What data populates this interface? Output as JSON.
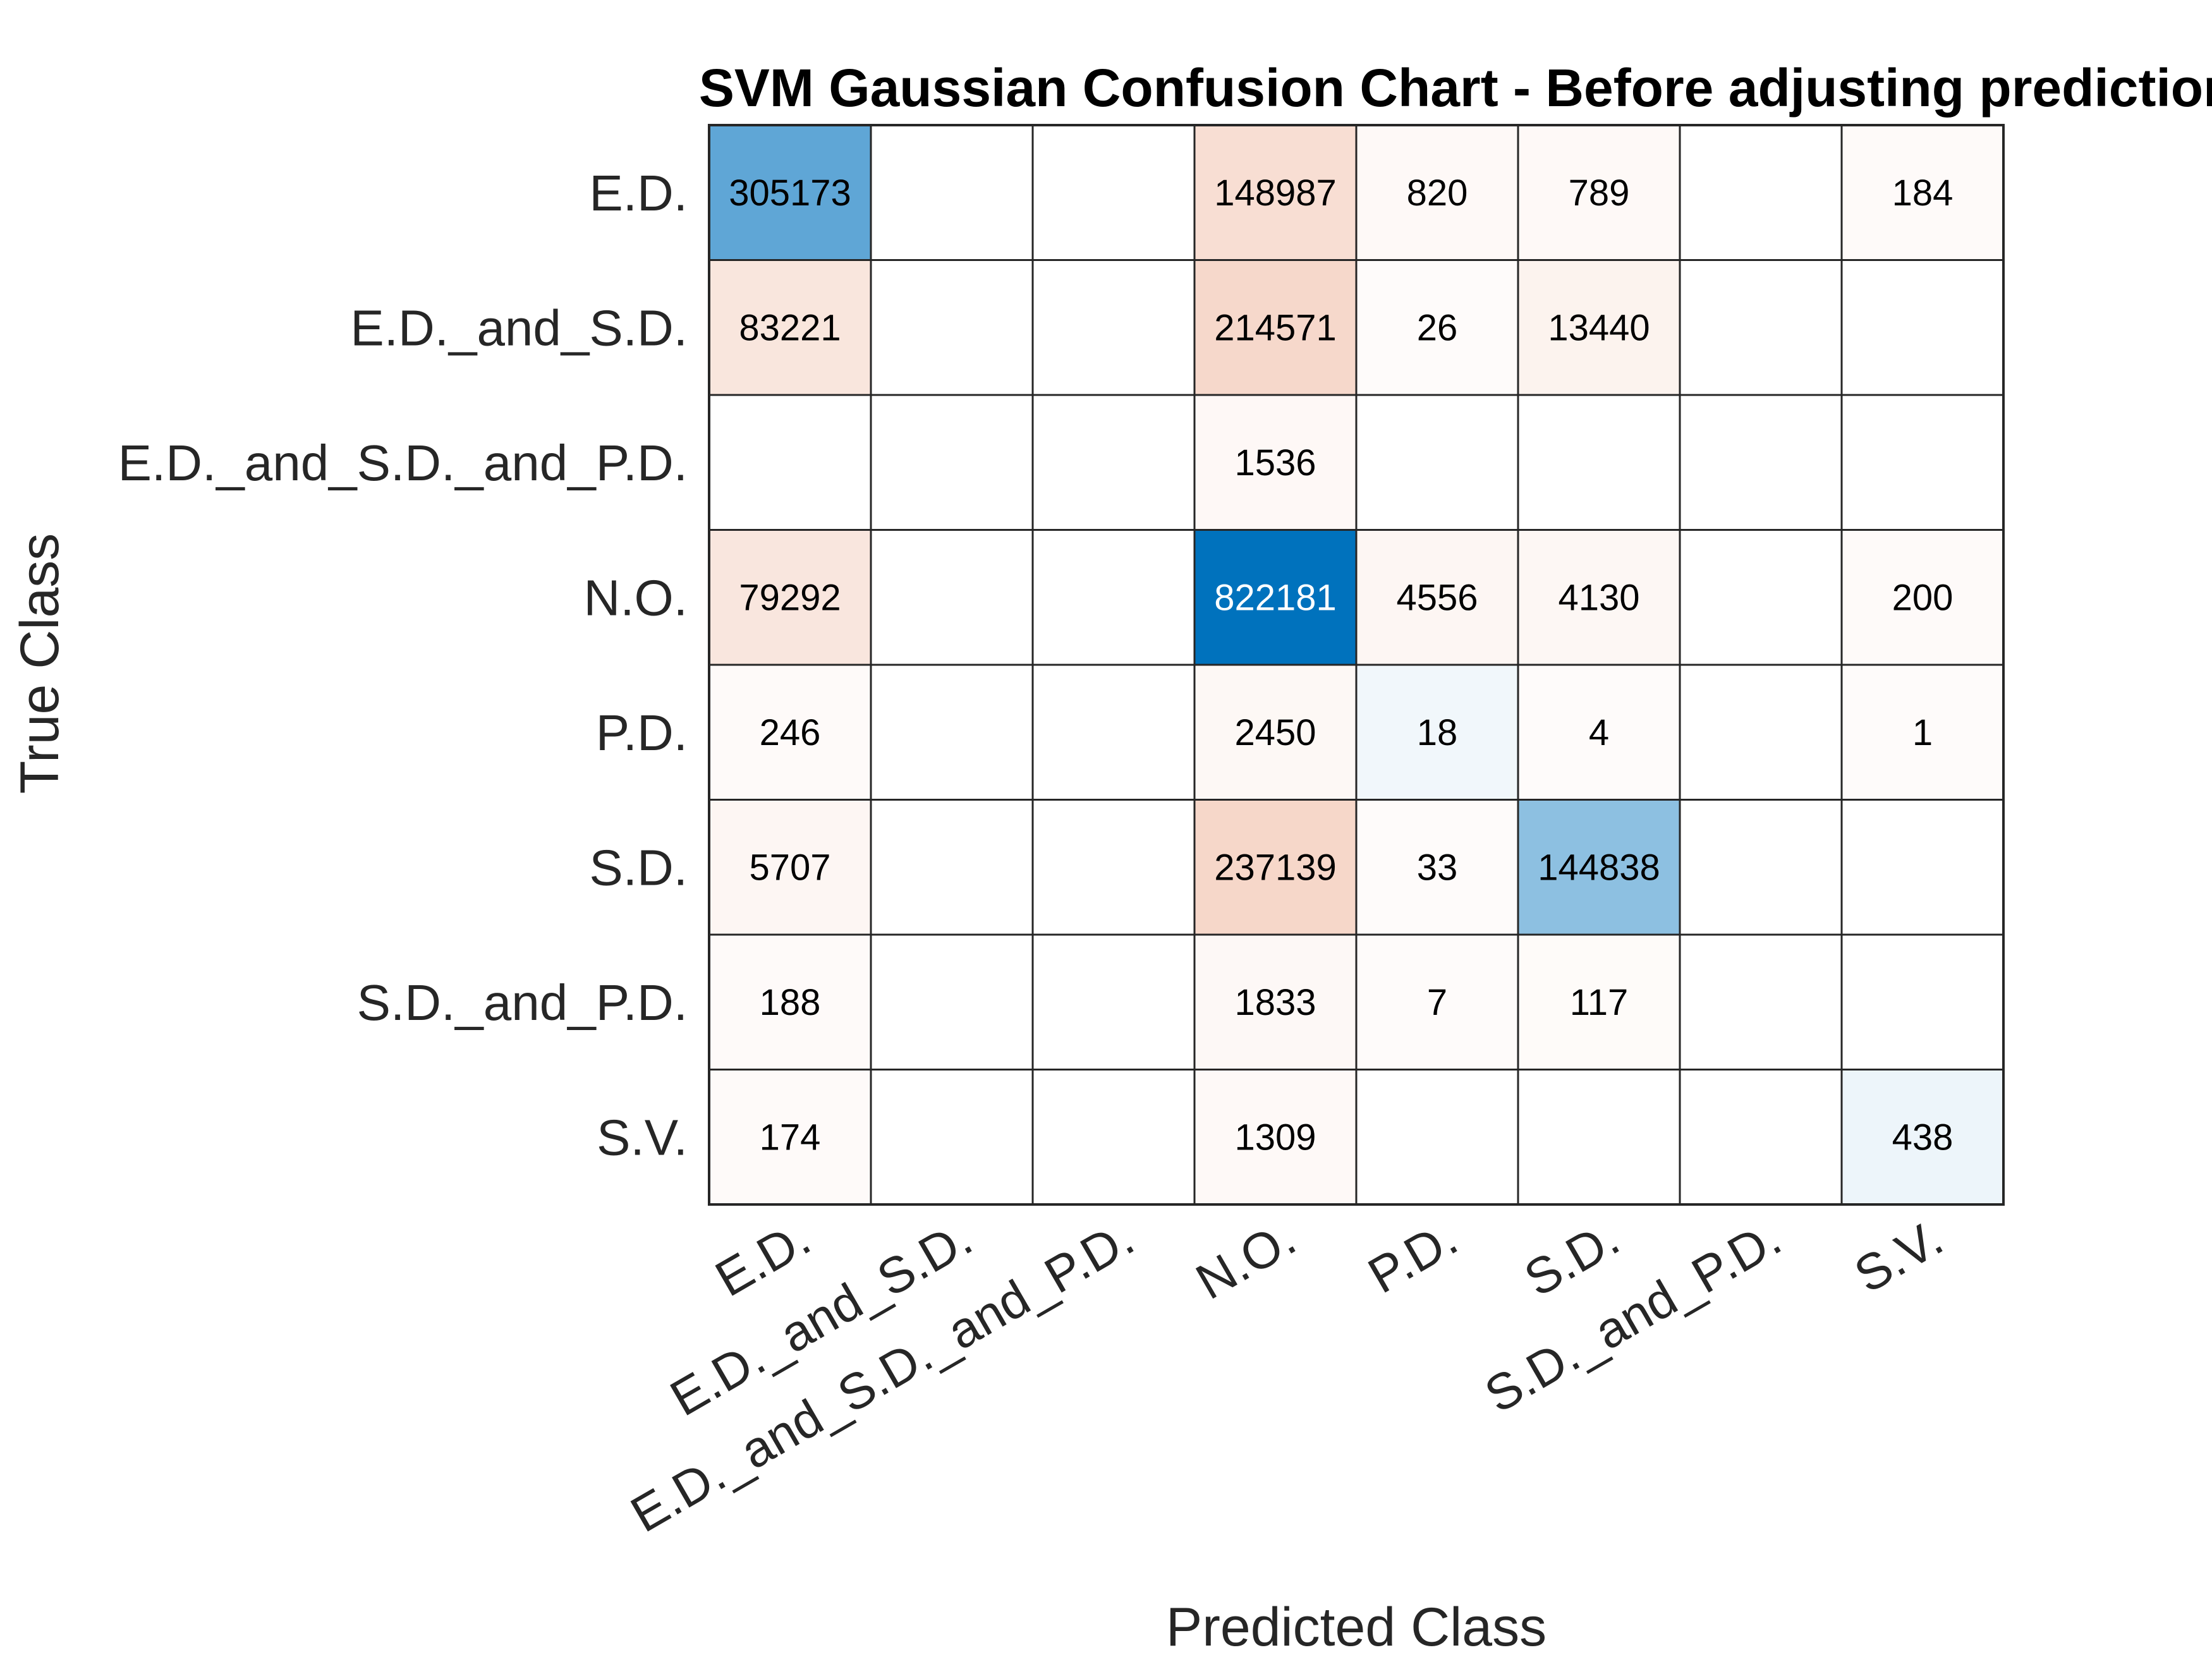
{
  "chart_data": {
    "type": "heatmap",
    "title": "SVM Gaussian Confusion Chart - Before adjusting predictions",
    "xlabel": "Predicted Class",
    "ylabel": "True Class",
    "classes": [
      "E.D.",
      "E.D._and_S.D.",
      "E.D._and_S.D._and_P.D.",
      "N.O.",
      "P.D.",
      "S.D.",
      "S.D._and_P.D.",
      "S.V."
    ],
    "matrix": [
      [
        305173,
        null,
        null,
        148987,
        820,
        789,
        null,
        184
      ],
      [
        83221,
        null,
        null,
        214571,
        26,
        13440,
        null,
        null
      ],
      [
        null,
        null,
        null,
        1536,
        null,
        null,
        null,
        null
      ],
      [
        79292,
        null,
        null,
        822181,
        4556,
        4130,
        null,
        200
      ],
      [
        246,
        null,
        null,
        2450,
        18,
        4,
        null,
        1
      ],
      [
        5707,
        null,
        null,
        237139,
        33,
        144838,
        null,
        null
      ],
      [
        188,
        null,
        null,
        1833,
        7,
        117,
        null,
        null
      ],
      [
        174,
        null,
        null,
        1309,
        null,
        null,
        null,
        438
      ]
    ],
    "colors": {
      "diagonal": "#0072bd",
      "off_diagonal": "#d95319",
      "empty": "#ffffff",
      "grid": "#262626"
    },
    "grid": true
  }
}
